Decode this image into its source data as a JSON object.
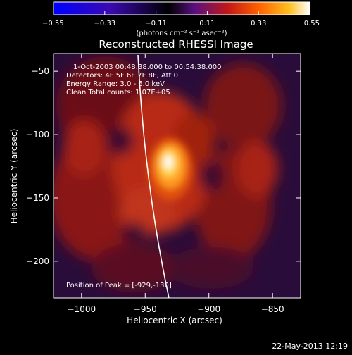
{
  "colorbar": {
    "ticks": [
      "-0.55",
      "-0.33",
      "-0.11",
      "0.11",
      "0.33",
      "0.55"
    ],
    "units": "(photons cm⁻² s⁻¹ asec⁻²)",
    "colors": [
      "#0000ff",
      "#3a0ab0",
      "#000000",
      "#5a1080",
      "#c01818",
      "#ff6000",
      "#ffc020",
      "#ffffff"
    ]
  },
  "chart_data": {
    "type": "heatmap",
    "title": "Reconstructed RHESSI Image",
    "xlabel": "Heliocentric X (arcsec)",
    "ylabel": "Heliocentric Y (arcsec)",
    "xlim": [
      -1022,
      -828
    ],
    "ylim": [
      -229,
      -36
    ],
    "xticks": [
      -1000,
      -950,
      -900,
      -850
    ],
    "yticks": [
      -50,
      -100,
      -150,
      -200
    ],
    "xtick_labels": [
      "−1000",
      "−950",
      "−900",
      "−850"
    ],
    "ytick_labels": [
      "−50",
      "−100",
      "−150",
      "−200"
    ],
    "peak": {
      "x": -929,
      "y": -130,
      "value": 0.55
    },
    "annotations": [
      "1-Oct-2003 00:48:38.000 to 00:54:38.000",
      "Detectors: 4F 5F 6F 7F 8F, Att 0",
      "Energy Range: 3.0 - 6.0 keV",
      "Clean    Total counts: 1.07E+05"
    ],
    "peak_label": "Position of Peak = [-929,-130]"
  },
  "timestamp": "22-May-2013 12:19"
}
